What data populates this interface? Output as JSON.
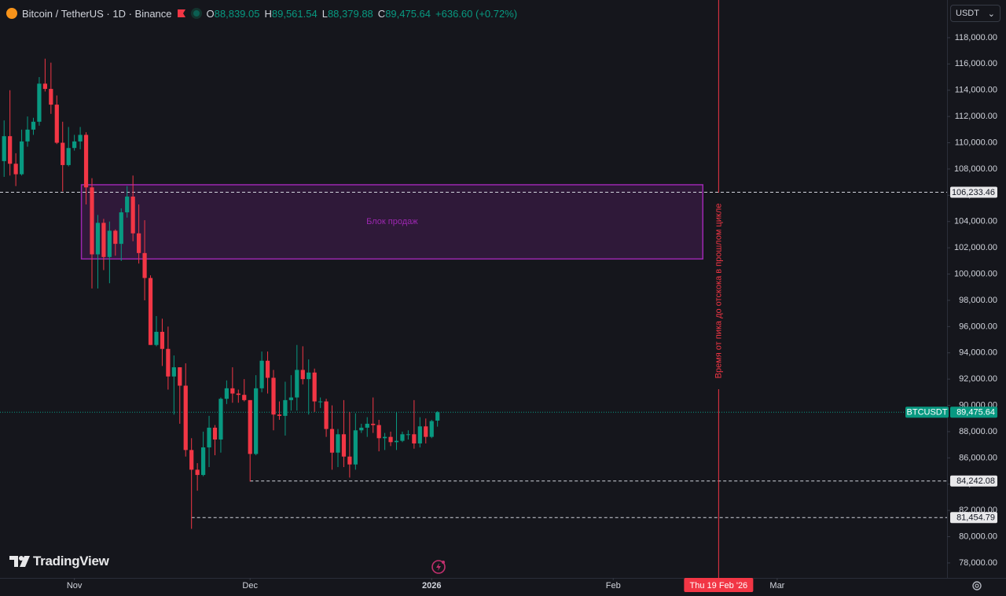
{
  "header": {
    "title": "Bitcoin / TetherUS · 1D · Binance",
    "ohlc": [
      {
        "key": "O",
        "value": "88,839.05"
      },
      {
        "key": "H",
        "value": "89,561.54"
      },
      {
        "key": "L",
        "value": "88,379.88"
      },
      {
        "key": "C",
        "value": "89,475.64"
      }
    ],
    "change": "+636.60 (+0.72%)"
  },
  "currency": "USDT",
  "logo": "TradingView",
  "chart_data": {
    "type": "candlestick",
    "up_color": "#089981",
    "down_color": "#f23645",
    "xlim": [
      -0.7,
      161
    ],
    "ylim": [
      76860,
      120870
    ],
    "xticks": [
      {
        "value": 12,
        "label": "Nov"
      },
      {
        "value": 42,
        "label": "Dec"
      },
      {
        "value": 73,
        "label": "2026"
      },
      {
        "value": 104,
        "label": "Feb"
      },
      {
        "value": 132,
        "label": "Mar"
      }
    ],
    "yticks": [
      {
        "value": 78000,
        "label": "78,000.00"
      },
      {
        "value": 80000,
        "label": "80,000.00"
      },
      {
        "value": 82000,
        "label": "82,000.00"
      },
      {
        "value": 84000,
        "label": "84,000.00"
      },
      {
        "value": 86000,
        "label": "86,000.00"
      },
      {
        "value": 88000,
        "label": "88,000.00"
      },
      {
        "value": 90000,
        "label": "90,000.00"
      },
      {
        "value": 92000,
        "label": "92,000.00"
      },
      {
        "value": 94000,
        "label": "94,000.00"
      },
      {
        "value": 96000,
        "label": "96,000.00"
      },
      {
        "value": 98000,
        "label": "98,000.00"
      },
      {
        "value": 100000,
        "label": "100,000.00"
      },
      {
        "value": 102000,
        "label": "102,000.00"
      },
      {
        "value": 104000,
        "label": "104,000.00"
      },
      {
        "value": 106000,
        "label": "106,000.00"
      },
      {
        "value": 108000,
        "label": "108,000.00"
      },
      {
        "value": 110000,
        "label": "110,000.00"
      },
      {
        "value": 112000,
        "label": "112,000.00"
      },
      {
        "value": 114000,
        "label": "114,000.00"
      },
      {
        "value": 116000,
        "label": "116,000.00"
      },
      {
        "value": 118000,
        "label": "118,000.00"
      }
    ],
    "open": [
      108600,
      110500,
      108400,
      107600,
      110100,
      111000,
      111600,
      114500,
      114100,
      112900,
      110000,
      108300,
      109600,
      110100,
      110600,
      106600,
      101500,
      103900,
      101300,
      103300,
      102300,
      104700,
      105900,
      103100,
      101600,
      99700,
      94600,
      95600,
      94300,
      92200,
      92900,
      91500,
      86600,
      85100,
      84700,
      86800,
      88300,
      87400,
      90500,
      91300,
      90900,
      90800,
      90400,
      86300,
      91300,
      93400,
      92100,
      89300,
      89200,
      90400,
      90600,
      92700,
      92000,
      92500,
      90300,
      90300,
      88200,
      86400,
      87800,
      86100,
      85500,
      88100,
      88300,
      88600,
      88500,
      87500,
      87600,
      87200,
      87300,
      87800,
      87800,
      87100,
      88400,
      87600,
      88839.05
    ],
    "high": [
      111700,
      114000,
      109200,
      111000,
      112000,
      111900,
      115000,
      116400,
      116100,
      113600,
      111600,
      111200,
      110600,
      111200,
      110800,
      107300,
      104500,
      104200,
      104000,
      103400,
      105000,
      106700,
      107500,
      105300,
      104100,
      99900,
      96800,
      96600,
      96000,
      93800,
      92900,
      93200,
      87500,
      85600,
      88000,
      89200,
      88500,
      90600,
      91900,
      92900,
      91200,
      92000,
      90400,
      92300,
      94100,
      94100,
      92700,
      90300,
      91800,
      92300,
      94600,
      94500,
      93500,
      92800,
      90600,
      90500,
      90000,
      88200,
      90400,
      89500,
      89400,
      88600,
      89100,
      90600,
      88900,
      87900,
      88000,
      89500,
      88000,
      88100,
      90400,
      89100,
      89000,
      88900,
      89561.54
    ],
    "low": [
      107400,
      107500,
      106700,
      107500,
      109700,
      110600,
      111300,
      113900,
      112200,
      109900,
      106300,
      108200,
      109400,
      109500,
      105300,
      98900,
      98900,
      100300,
      99300,
      101400,
      101000,
      104300,
      102500,
      100800,
      98000,
      94600,
      94500,
      93000,
      91200,
      89300,
      88600,
      86100,
      80600,
      83500,
      84600,
      85300,
      86200,
      86400,
      90100,
      90200,
      90200,
      90300,
      84200,
      86200,
      91000,
      90900,
      88100,
      88900,
      87700,
      89600,
      89600,
      91600,
      89300,
      89500,
      89800,
      87600,
      85100,
      85300,
      85300,
      84500,
      85100,
      87900,
      87600,
      87900,
      86500,
      86600,
      86900,
      86600,
      87200,
      87400,
      86700,
      86800,
      87100,
      87500,
      88379.88
    ],
    "close": [
      110500,
      108400,
      107600,
      110100,
      111000,
      111600,
      114500,
      114100,
      112900,
      110000,
      108300,
      109600,
      110100,
      110600,
      106600,
      101500,
      103900,
      101300,
      103300,
      102300,
      104700,
      105900,
      103100,
      101600,
      99700,
      94600,
      95600,
      94300,
      92200,
      92900,
      91500,
      86600,
      85100,
      84700,
      86800,
      88300,
      87400,
      90500,
      91300,
      90900,
      90800,
      90400,
      86300,
      91300,
      93400,
      92100,
      89300,
      89200,
      90400,
      90600,
      92700,
      92000,
      92500,
      90300,
      90300,
      88200,
      86400,
      87800,
      86100,
      85500,
      88100,
      88300,
      88600,
      88500,
      87500,
      87600,
      87200,
      87300,
      87800,
      87800,
      87100,
      88400,
      87600,
      88800,
      89475.64
    ],
    "last_price": {
      "value": 89475.64,
      "label": "89,475.64",
      "symbol": "BTCUSDT",
      "color": "#089981"
    },
    "levels": [
      {
        "value": 106233.46,
        "label": "106,233.46",
        "start": -0.7
      },
      {
        "value": 84242.08,
        "label": "84,242.08",
        "start": 42
      },
      {
        "value": 81454.79,
        "label": "81,454.79",
        "start": 32
      }
    ],
    "zone": {
      "label": "Блок продаж",
      "xlim": [
        13.2,
        119.3
      ],
      "ylim": [
        101150,
        106800
      ],
      "color": "#9c27b0"
    },
    "vline": {
      "value": 122,
      "label": "Thu 19 Feb '26",
      "text": "Время от пика до отскока в прошлом цикле",
      "color": "#f23645"
    }
  }
}
